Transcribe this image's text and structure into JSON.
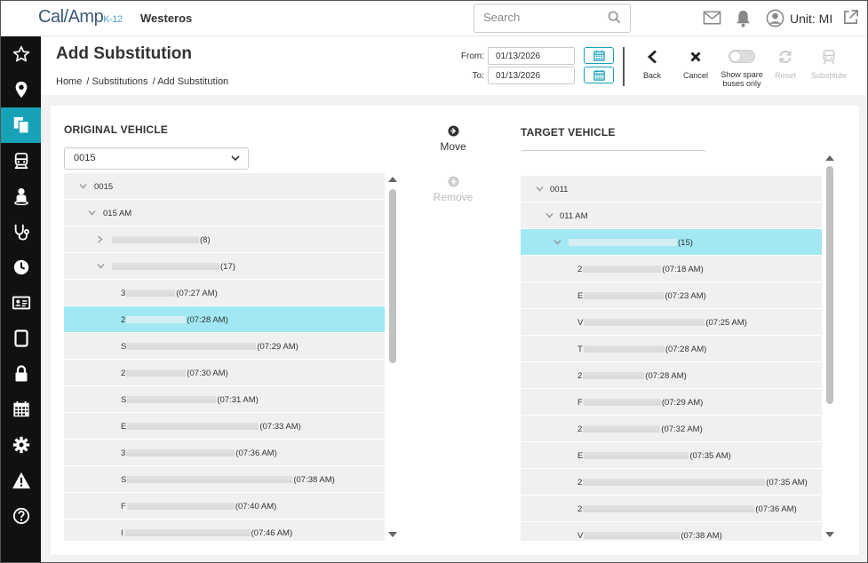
{
  "app": {
    "logo_main": "Cal/Amp",
    "logo_suffix": "K-12",
    "org": "Westeros",
    "unit_label": "Unit: MI",
    "search_placeholder": "Search"
  },
  "header": {
    "title": "Add Substitution",
    "breadcrumb": [
      "Home",
      "/ Substitutions",
      "/ Add Substitution"
    ],
    "from_label": "From:",
    "from_value": "01/13/2026",
    "to_label": "To:",
    "to_value": "01/13/2026",
    "buttons": {
      "back": "Back",
      "cancel": "Cancel",
      "spare_line1": "Show spare",
      "spare_line2": "buses only",
      "reset": "Reset",
      "substitute": "Substitute"
    }
  },
  "sidebar": {
    "items": [
      "star-icon",
      "location-icon",
      "documents-icon",
      "bus-icon",
      "student-icon",
      "stethoscope-icon",
      "clock-icon",
      "id-card-icon",
      "tablet-icon",
      "lock-icon",
      "calendar-icon",
      "gear-icon",
      "warning-icon",
      "help-icon"
    ],
    "active_index": 2
  },
  "original": {
    "title": "ORIGINAL VEHICLE",
    "selected": "0015",
    "root": "0015",
    "am": "015 AM",
    "routes": [
      {
        "prefix": "",
        "count": "(8)"
      },
      {
        "prefix": "",
        "count": "(17)"
      }
    ],
    "stops": [
      {
        "prefix": "3",
        "time": "(07:27 AM)"
      },
      {
        "prefix": "2",
        "time": "(07:28 AM)"
      },
      {
        "prefix": "S",
        "time": "(07:29 AM)"
      },
      {
        "prefix": "2",
        "time": "(07:30 AM)"
      },
      {
        "prefix": "S",
        "time": "(07:31 AM)"
      },
      {
        "prefix": "E",
        "time": "(07:33 AM)"
      },
      {
        "prefix": "3",
        "time": "(07:36 AM)"
      },
      {
        "prefix": "S",
        "time": "(07:38 AM)"
      },
      {
        "prefix": "F",
        "time": "(07:40 AM)"
      },
      {
        "prefix": "I",
        "time": "(07:46 AM)"
      }
    ]
  },
  "move": {
    "move_label": "Move",
    "remove_label": "Remove"
  },
  "target": {
    "title": "TARGET VEHICLE",
    "selected": "0011",
    "root": "0011",
    "am": "011 AM",
    "route_count": "(15)",
    "stops": [
      {
        "prefix": "2",
        "time": "(07:18 AM)"
      },
      {
        "prefix": "E",
        "time": "(07:23 AM)"
      },
      {
        "prefix": "V",
        "time": "(07:25 AM)"
      },
      {
        "prefix": "T",
        "time": "(07:28 AM)"
      },
      {
        "prefix": "2",
        "time": "(07:28 AM)"
      },
      {
        "prefix": "F",
        "time": "(07:29 AM)"
      },
      {
        "prefix": "2",
        "time": "(07:32 AM)"
      },
      {
        "prefix": "E",
        "time": "(07:35 AM)"
      },
      {
        "prefix": "2",
        "time": "(07:35 AM)"
      },
      {
        "prefix": "2",
        "time": "(07:36 AM)"
      },
      {
        "prefix": "V",
        "time": "(07:38 AM)"
      }
    ]
  },
  "colors": {
    "accent": "#17a2b8",
    "selected_row": "#a1e8f4",
    "sidebar": "#111111",
    "add_green": "#28a745"
  }
}
